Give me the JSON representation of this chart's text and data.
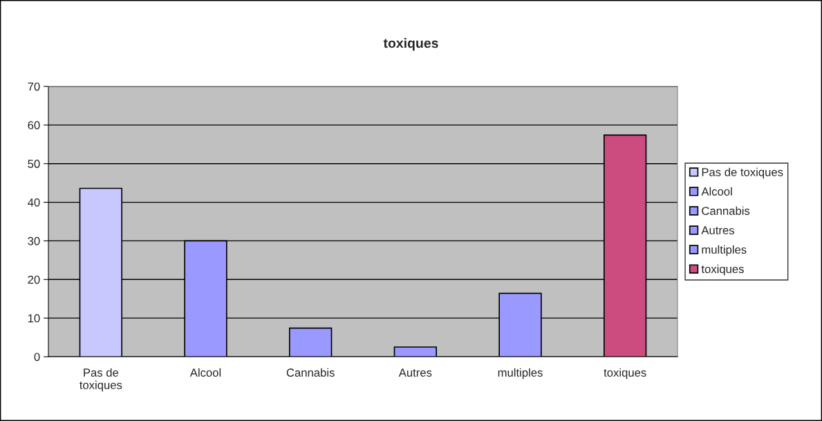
{
  "chart_data": {
    "type": "bar",
    "title": "toxiques",
    "categories": [
      "Pas de\ntoxiques",
      "Alcool",
      "Cannabis",
      "Autres",
      "multiples",
      "toxiques"
    ],
    "series": [
      {
        "name": "Pas de toxiques",
        "color": "#c8c8ff",
        "values": [
          43.6,
          null,
          null,
          null,
          null,
          null
        ]
      },
      {
        "name": "Alcool",
        "color": "#9999ff",
        "values": [
          null,
          30.0,
          null,
          null,
          null,
          null
        ]
      },
      {
        "name": "Cannabis",
        "color": "#9999ff",
        "values": [
          null,
          null,
          7.4,
          null,
          null,
          null
        ]
      },
      {
        "name": "Autres",
        "color": "#9999ff",
        "values": [
          null,
          null,
          null,
          2.5,
          null,
          null
        ]
      },
      {
        "name": "multiples",
        "color": "#9999ff",
        "values": [
          null,
          null,
          null,
          null,
          16.4,
          null
        ]
      },
      {
        "name": "toxiques",
        "color": "#cc4c80",
        "values": [
          null,
          null,
          null,
          null,
          null,
          57.4
        ]
      }
    ],
    "ylim": [
      0,
      70
    ],
    "yticks": [
      0,
      10,
      20,
      30,
      40,
      50,
      60,
      70
    ],
    "grid": "y",
    "legend": "right"
  }
}
